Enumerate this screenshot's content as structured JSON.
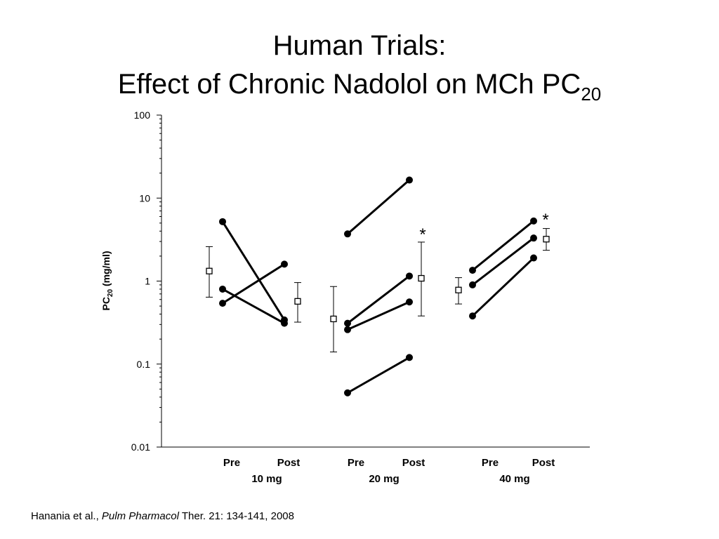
{
  "slide": {
    "title_line1": "Human Trials:",
    "title_line2_main": "Effect of Chronic Nadolol on MCh PC",
    "title_line2_sub": "20",
    "citation_authors": "Hanania et al., ",
    "citation_journal": "Pulm Pharmacol",
    "citation_rest": " Ther. 21: 134-141, 2008"
  },
  "chart_data": {
    "type": "line",
    "yscale": "log",
    "ylim": [
      0.01,
      100
    ],
    "ylabel_main": "PC",
    "ylabel_sub": "20",
    "ylabel_unit": " (mg/ml)",
    "yticks": [
      {
        "value": 100,
        "label": "100"
      },
      {
        "value": 10,
        "label": "10"
      },
      {
        "value": 1,
        "label": "1"
      },
      {
        "value": 0.1,
        "label": "0.1"
      },
      {
        "value": 0.01,
        "label": "0.01"
      }
    ],
    "groups": [
      {
        "name": "10 mg",
        "pre_label": "Pre",
        "post_label": "Post",
        "subjects": [
          {
            "pre": 5.2,
            "post": 0.34
          },
          {
            "pre": 0.8,
            "post": 0.31
          },
          {
            "pre": 0.54,
            "post": 1.6
          }
        ],
        "pre_mean": {
          "value": 1.32,
          "low": 0.64,
          "high": 2.6
        },
        "post_mean": {
          "value": 0.57,
          "low": 0.32,
          "high": 0.96
        },
        "significant": false
      },
      {
        "name": "20 mg",
        "pre_label": "Pre",
        "post_label": "Post",
        "subjects": [
          {
            "pre": 3.7,
            "post": 16.5
          },
          {
            "pre": 0.31,
            "post": 1.15
          },
          {
            "pre": 0.26,
            "post": 0.56
          },
          {
            "pre": 0.045,
            "post": 0.12
          }
        ],
        "pre_mean": {
          "value": 0.35,
          "low": 0.14,
          "high": 0.86
        },
        "post_mean": {
          "value": 1.08,
          "low": 0.38,
          "high": 2.95
        },
        "significant": true
      },
      {
        "name": "40 mg",
        "pre_label": "Pre",
        "post_label": "Post",
        "subjects": [
          {
            "pre": 1.35,
            "post": 5.3
          },
          {
            "pre": 0.9,
            "post": 3.3
          },
          {
            "pre": 0.38,
            "post": 1.9
          }
        ],
        "pre_mean": {
          "value": 0.78,
          "low": 0.53,
          "high": 1.1
        },
        "post_mean": {
          "value": 3.2,
          "low": 2.35,
          "high": 4.3
        },
        "significant": true
      }
    ],
    "significance_marker": "*"
  }
}
